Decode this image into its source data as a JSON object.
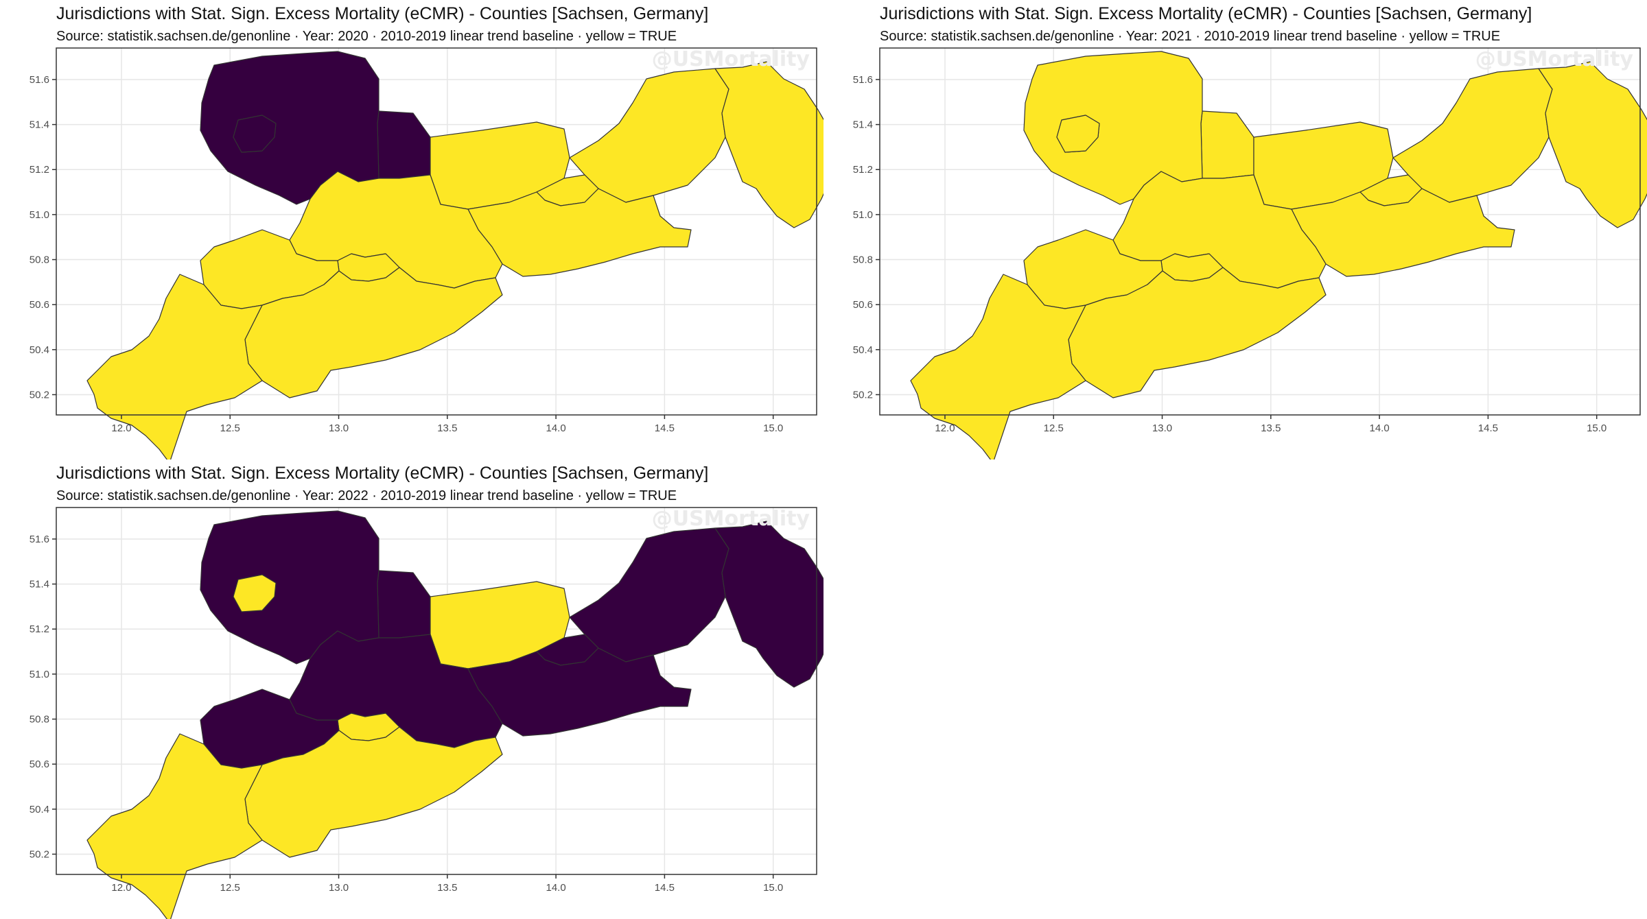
{
  "panels": [
    {
      "title": "Jurisdictions with Stat. Sign. Excess Mortality (eCMR) - Counties [Sachsen, Germany]",
      "subtitle": "Source: statistik.sachsen.de/genonline · Year: 2020 · 2010-2019 linear trend baseline · yellow = TRUE",
      "watermark": "@USMortality",
      "year": "2020",
      "values": {
        "leipzig_land": false,
        "leipzig_city": false,
        "nordsachsen": false,
        "meissen": true,
        "bautzen": true,
        "goerlitz": true,
        "dresden": true,
        "saechsische_schweiz": true,
        "mittelsachsen": true,
        "chemnitz": true,
        "zwickau": true,
        "erzgebirge": true,
        "vogtland": true
      }
    },
    {
      "title": "Jurisdictions with Stat. Sign. Excess Mortality (eCMR) - Counties [Sachsen, Germany]",
      "subtitle": "Source: statistik.sachsen.de/genonline · Year: 2021 · 2010-2019 linear trend baseline · yellow = TRUE",
      "watermark": "@USMortality",
      "year": "2021",
      "values": {
        "leipzig_land": true,
        "leipzig_city": true,
        "nordsachsen": true,
        "meissen": true,
        "bautzen": true,
        "goerlitz": true,
        "dresden": true,
        "saechsische_schweiz": true,
        "mittelsachsen": true,
        "chemnitz": true,
        "zwickau": true,
        "erzgebirge": true,
        "vogtland": true
      }
    },
    {
      "title": "Jurisdictions with Stat. Sign. Excess Mortality (eCMR) - Counties [Sachsen, Germany]",
      "subtitle": "Source: statistik.sachsen.de/genonline · Year: 2022 · 2010-2019 linear trend baseline · yellow = TRUE",
      "watermark": "@USMortality",
      "year": "2022",
      "values": {
        "leipzig_land": false,
        "leipzig_city": true,
        "nordsachsen": false,
        "meissen": true,
        "bautzen": false,
        "goerlitz": false,
        "dresden": false,
        "saechsische_schweiz": false,
        "mittelsachsen": false,
        "chemnitz": true,
        "zwickau": false,
        "erzgebirge": true,
        "vogtland": true
      }
    }
  ],
  "axes": {
    "x_ticks": [
      12.0,
      12.5,
      13.0,
      13.5,
      14.0,
      14.5,
      15.0
    ],
    "y_ticks": [
      50.2,
      50.4,
      50.6,
      50.8,
      51.0,
      51.2,
      51.4,
      51.6
    ],
    "xlim": [
      11.7,
      15.2
    ],
    "ylim": [
      50.11,
      51.74
    ]
  },
  "colors": {
    "true": "#FDE725",
    "false": "#35003F",
    "border": "#333333",
    "grid": "#e6e6e6",
    "frame": "#333333"
  }
}
